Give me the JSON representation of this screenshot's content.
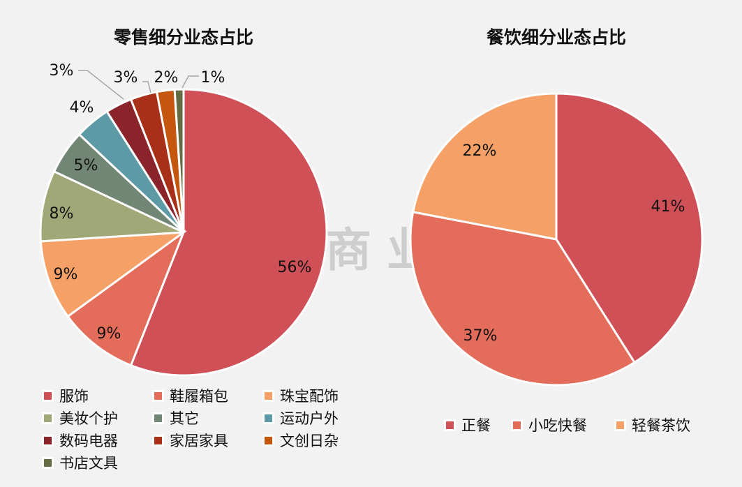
{
  "watermark": "武汉商业观察",
  "chart_data": [
    {
      "type": "pie",
      "title": "零售细分业态占比",
      "categories": [
        "服饰",
        "鞋履箱包",
        "珠宝配饰",
        "美妆个护",
        "其它",
        "运动户外",
        "数码电器",
        "家居家具",
        "文创日杂",
        "书店文具"
      ],
      "values": [
        56,
        9,
        9,
        8,
        5,
        4,
        3,
        3,
        2,
        1
      ],
      "labels": [
        "56%",
        "9%",
        "9%",
        "8%",
        "5%",
        "4%",
        "3%",
        "3%",
        "2%",
        "1%"
      ],
      "colors": [
        "#D05058",
        "#E46C5A",
        "#F4A066",
        "#A0A878",
        "#728676",
        "#5E9AA6",
        "#8A242A",
        "#A83018",
        "#C4560E",
        "#646C44"
      ],
      "legend_placement": "bottom"
    },
    {
      "type": "pie",
      "title": "餐饮细分业态占比",
      "categories": [
        "正餐",
        "小吃快餐",
        "轻餐茶饮"
      ],
      "values": [
        41,
        37,
        22
      ],
      "labels": [
        "41%",
        "37%",
        "22%"
      ],
      "colors": [
        "#D05058",
        "#E46C5A",
        "#F4A066"
      ],
      "legend_placement": "bottom"
    }
  ]
}
